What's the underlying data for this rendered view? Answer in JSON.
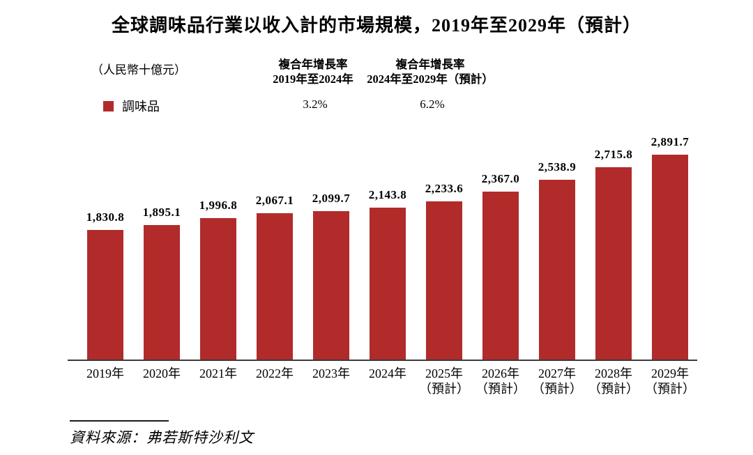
{
  "title": "全球調味品行業以收入計的市場規模，2019年至2029年（預計）",
  "unit_label": "（人民幣十億元）",
  "legend": {
    "swatch_color": "#B12B2B",
    "label": "調味品"
  },
  "cagr_columns": [
    {
      "header_line1": "複合年增長率",
      "header_line2": "2019年至2024年",
      "value": "3.2%"
    },
    {
      "header_line1": "複合年增長率",
      "header_line2": "2024年至2029年（預計）",
      "value": "6.2%"
    }
  ],
  "source_label": "資料來源：弗若斯特沙利文",
  "chart_data": {
    "type": "bar",
    "title": "全球調味品行業以收入計的市場規模，2019年至2029年（預計）",
    "ylabel": "人民幣十億元",
    "categories": [
      "2019年",
      "2020年",
      "2021年",
      "2022年",
      "2023年",
      "2024年",
      "2025年（預計）",
      "2026年（預計）",
      "2027年（預計）",
      "2028年（預計）",
      "2029年（預計）"
    ],
    "series": [
      {
        "name": "調味品",
        "values": [
          1830.8,
          1895.1,
          1996.8,
          2067.1,
          2099.7,
          2143.8,
          2233.6,
          2367.0,
          2538.9,
          2715.8,
          2891.7
        ]
      }
    ],
    "value_labels": [
      "1,830.8",
      "1,895.1",
      "1,996.8",
      "2,067.1",
      "2,099.7",
      "2,143.8",
      "2,233.6",
      "2,367.0",
      "2,538.9",
      "2,715.8",
      "2,891.7"
    ],
    "cagr_2019_2024": "3.2%",
    "cagr_2024_2029": "6.2%",
    "bar_color": "#B12B2B",
    "axis_color": "#3a3a3a",
    "ylim": [
      0,
      2891.7
    ],
    "grid": false,
    "legend_position": "top-left"
  }
}
